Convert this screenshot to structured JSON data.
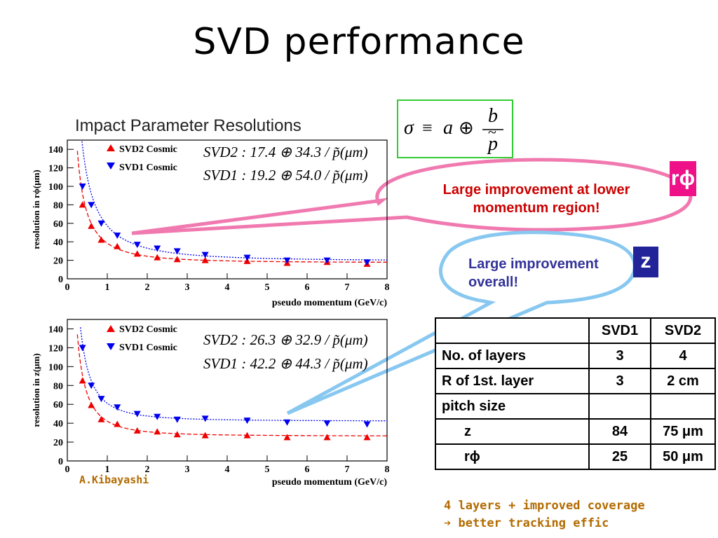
{
  "slide": {
    "title": "SVD performance",
    "chart_heading": "Impact Parameter Resolutions",
    "author": "A.Kibayashi",
    "note_line1": "4 layers + improved coverage",
    "note_line2": "➔ better tracking effic"
  },
  "formula": {
    "sigma": "σ",
    "equiv": "≡",
    "a": "a",
    "oplus": "⊕",
    "b": "b",
    "p": "p",
    "tilde": "~"
  },
  "badges": {
    "rphi": "rϕ",
    "z": "z"
  },
  "callouts": {
    "rphi_line1": "Large improvement at lower",
    "rphi_line2": "momentum region!",
    "z_line1": "Large improvement",
    "z_line2": "overall!"
  },
  "table": {
    "headers": [
      "",
      "SVD1",
      "SVD2"
    ],
    "rows": [
      [
        "No. of layers",
        "3",
        "4"
      ],
      [
        "R of 1st. layer",
        "3",
        "2 cm"
      ],
      [
        "pitch size",
        "",
        ""
      ],
      [
        "z",
        "84",
        "75 μm"
      ],
      [
        "rϕ",
        "25",
        "50 μm"
      ]
    ]
  },
  "colors": {
    "svd2": "#ee0000",
    "svd1": "#0000ee",
    "callout1": "#f07ab0",
    "callout2": "#88c8f0",
    "formula_border": "#33cc33"
  },
  "chart_data": [
    {
      "type": "scatter",
      "ylabel": "resolution in rϕ(μm)",
      "xlabel": "pseudo momentum (GeV/c)",
      "xlim": [
        0,
        8
      ],
      "ylim": [
        0,
        150
      ],
      "xticks": [
        0,
        1,
        2,
        3,
        4,
        5,
        6,
        7,
        8
      ],
      "yticks": [
        0,
        20,
        40,
        60,
        80,
        100,
        120,
        140
      ],
      "formula_svd2": "SVD2 : 17.4 ⊕ 34.3 / p̃(μm)",
      "formula_svd1": "SVD1 : 19.2 ⊕ 54.0 / p̃(μm)",
      "series": [
        {
          "name": "SVD2 Cosmic",
          "marker": "triangle-up",
          "x": [
            0.38,
            0.6,
            0.85,
            1.25,
            1.75,
            2.25,
            2.75,
            3.45,
            4.5,
            5.5,
            6.5,
            7.5
          ],
          "y": [
            80,
            57,
            42,
            35,
            27,
            23,
            21,
            20,
            19,
            17,
            18,
            16
          ],
          "fit": {
            "a": 17.4,
            "b": 34.3
          }
        },
        {
          "name": "SVD1 Cosmic",
          "marker": "triangle-down",
          "x": [
            0.38,
            0.6,
            0.85,
            1.25,
            1.75,
            2.25,
            2.75,
            3.45,
            4.5,
            5.5,
            6.5,
            7.5
          ],
          "y": [
            100,
            80,
            60,
            47,
            37,
            33,
            30,
            26,
            23,
            20,
            20,
            18
          ],
          "fit": {
            "a": 19.2,
            "b": 54.0
          }
        }
      ]
    },
    {
      "type": "scatter",
      "ylabel": "resolution in z(μm)",
      "xlabel": "pseudo momentum (GeV/c)",
      "xlim": [
        0,
        8
      ],
      "ylim": [
        0,
        150
      ],
      "xticks": [
        0,
        1,
        2,
        3,
        4,
        5,
        6,
        7,
        8
      ],
      "yticks": [
        0,
        20,
        40,
        60,
        80,
        100,
        120,
        140
      ],
      "formula_svd2": "SVD2 : 26.3 ⊕ 32.9 / p̃(μm)",
      "formula_svd1": "SVD1 : 42.2 ⊕ 44.3 / p̃(μm)",
      "series": [
        {
          "name": "SVD2 Cosmic",
          "marker": "triangle-up",
          "x": [
            0.38,
            0.6,
            0.85,
            1.25,
            1.75,
            2.25,
            2.75,
            3.45,
            4.5,
            5.5,
            6.5,
            7.5
          ],
          "y": [
            85,
            59,
            44,
            39,
            32,
            31,
            28,
            27,
            27,
            25,
            25,
            25
          ],
          "fit": {
            "a": 26.3,
            "b": 32.9
          }
        },
        {
          "name": "SVD1 Cosmic",
          "marker": "triangle-down",
          "x": [
            0.38,
            0.6,
            0.85,
            1.25,
            1.75,
            2.25,
            2.75,
            3.45,
            4.5,
            5.5,
            6.5,
            7.5
          ],
          "y": [
            120,
            80,
            66,
            57,
            50,
            47,
            44,
            45,
            43,
            41,
            40,
            39
          ],
          "fit": {
            "a": 42.2,
            "b": 44.3
          }
        }
      ]
    }
  ]
}
